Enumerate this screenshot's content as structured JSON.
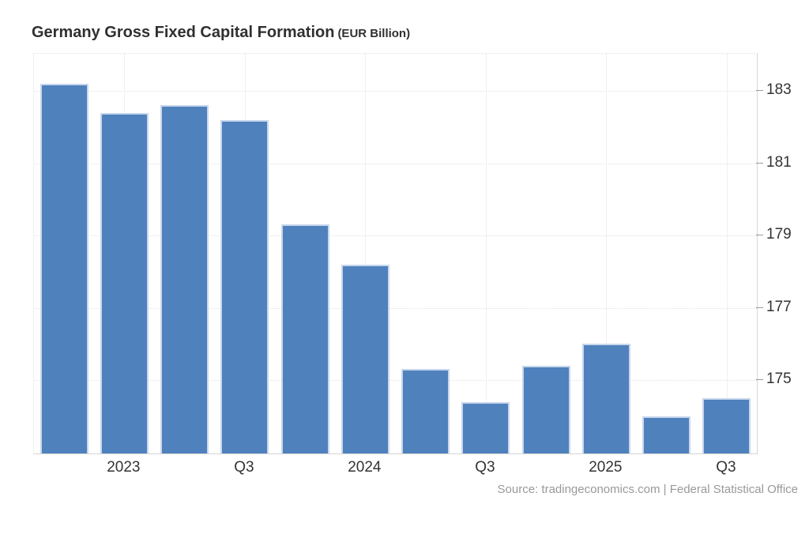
{
  "header": {
    "title_main": "Germany Gross Fixed Capital Formation",
    "title_unit": "(EUR Billion)"
  },
  "footer": {
    "source": "Source: tradingeconomics.com | Federal Statistical Office"
  },
  "chart_data": {
    "type": "bar",
    "title": "Germany Gross Fixed Capital Formation",
    "subtitle": "(EUR Billion)",
    "categories": [
      "",
      "2023",
      "",
      "Q3",
      "",
      "2024",
      "",
      "Q3",
      "",
      "2025",
      "",
      "Q3"
    ],
    "values": [
      183.2,
      182.4,
      182.6,
      182.2,
      179.3,
      178.2,
      175.3,
      174.4,
      175.4,
      176.0,
      174.0,
      174.5
    ],
    "xlabel": "",
    "ylabel": "",
    "yticks": [
      175,
      177,
      179,
      181,
      183
    ],
    "ylim": [
      172.97,
      184.03
    ],
    "grid": true,
    "legend": "none",
    "y_axis_side": "right",
    "bar_color": "#4f81bd",
    "bar_border_color": "#c8d7ec",
    "grid_color": "#e2e2e2",
    "axis_line_color": "#d6d6d6",
    "tick_mark_color": "#9a9a9a",
    "label_color": "#333333",
    "source_color": "#999999"
  }
}
